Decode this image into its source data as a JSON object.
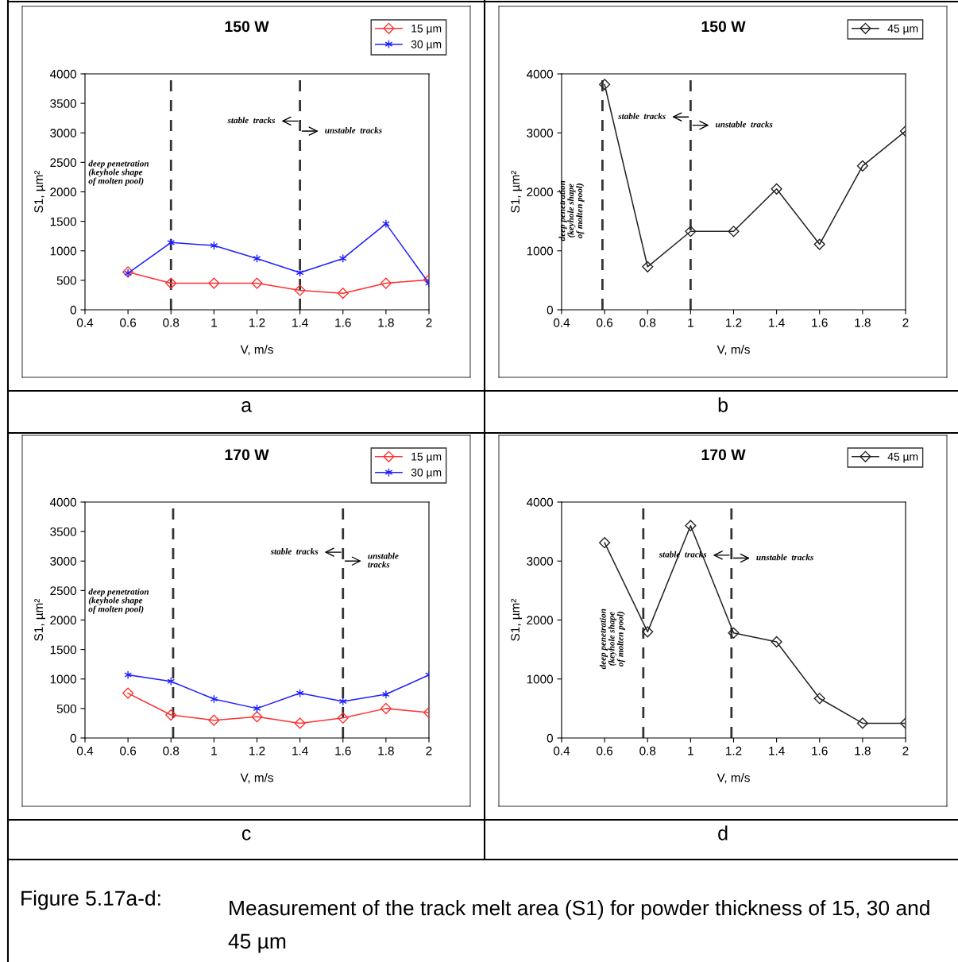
{
  "chart_data": [
    {
      "type": "line",
      "title": "150 W",
      "xlabel": "V, m/s",
      "ylabel": "S1, µm²",
      "xlim": [
        0.4,
        2
      ],
      "xticks": [
        0.4,
        0.6,
        0.8,
        1,
        1.2,
        1.4,
        1.6,
        1.8,
        2
      ],
      "ylim": [
        0,
        4000
      ],
      "yticks": [
        0,
        500,
        1000,
        1500,
        2000,
        2500,
        3000,
        3500,
        4000
      ],
      "grid": false,
      "legend": "top right",
      "x": [
        0.6,
        0.8,
        1,
        1.2,
        1.4,
        1.6,
        1.8,
        2
      ],
      "series": [
        {
          "name": "15 µm",
          "color": "#ff3030",
          "marker": "diamond",
          "values": [
            640,
            450,
            450,
            450,
            330,
            280,
            450,
            510
          ]
        },
        {
          "name": "30 µm",
          "color": "#2020ff",
          "marker": "cross",
          "values": [
            620,
            1140,
            1090,
            870,
            630,
            870,
            1460,
            450
          ]
        }
      ],
      "ref_lines": [
        {
          "axis": "x",
          "value": 0.8,
          "line_style": "dashed",
          "color": "#333333"
        },
        {
          "axis": "x",
          "value": 1.4,
          "line_style": "dashed",
          "color": "#333333"
        }
      ],
      "annotations": [
        "a",
        "deep penetration\n(keyhole shape\nof molten pool)",
        {
          "text": "stable  tracks",
          "x": 1.4,
          "y": 3200
        },
        {
          "text": "unstable  tracks",
          "x": 1.4,
          "y": 3030
        },
        "Figure 5.17a-d:",
        "Measurement of the track melt area (S1) for powder thickness of 15, 30 and 45 µm"
      ]
    },
    {
      "type": "line",
      "title": "150 W",
      "xlabel": "V, m/s",
      "ylabel": "S1, µm²",
      "xlim": [
        0.4,
        2
      ],
      "xticks": [
        0.4,
        0.6,
        0.8,
        1,
        1.2,
        1.4,
        1.6,
        1.8,
        2
      ],
      "ylim": [
        0,
        4000
      ],
      "yticks": [
        0,
        1000,
        2000,
        3000,
        4000
      ],
      "grid": false,
      "legend": "top right",
      "x": [
        0.6,
        0.8,
        1,
        1.2,
        1.4,
        1.6,
        1.8,
        2
      ],
      "series": [
        {
          "name": "45 µm",
          "color": "#222222",
          "marker": "diamond",
          "values": [
            3820,
            730,
            1330,
            1330,
            2050,
            1110,
            2440,
            3030
          ]
        }
      ],
      "ref_lines": [
        {
          "axis": "x",
          "value": 0.59,
          "line_style": "dashed",
          "color": "#333333"
        },
        {
          "axis": "x",
          "value": 1.0,
          "line_style": "dashed",
          "color": "#333333"
        }
      ],
      "annotations": [
        "b",
        "deep penetration\n(keyhole shape\nof molten pool)",
        {
          "text": "stable  tracks",
          "x": 1.0,
          "y": 3270
        },
        {
          "text": "unstable  tracks",
          "x": 1.0,
          "y": 3130
        }
      ]
    },
    {
      "type": "line",
      "title": "170 W",
      "xlabel": "V, m/s",
      "ylabel": "S1, µm²",
      "xlim": [
        0.4,
        2
      ],
      "xticks": [
        0.4,
        0.6,
        0.8,
        1,
        1.2,
        1.4,
        1.6,
        1.8,
        2
      ],
      "ylim": [
        0,
        4000
      ],
      "yticks": [
        0,
        500,
        1000,
        1500,
        2000,
        2500,
        3000,
        3500,
        4000
      ],
      "grid": false,
      "legend": "top right",
      "x": [
        0.6,
        0.8,
        1,
        1.2,
        1.4,
        1.6,
        1.8,
        2
      ],
      "series": [
        {
          "name": "15 µm",
          "color": "#ff3030",
          "marker": "diamond",
          "values": [
            760,
            390,
            300,
            360,
            250,
            340,
            500,
            430
          ]
        },
        {
          "name": "30 µm",
          "color": "#2020ff",
          "marker": "cross",
          "values": [
            1070,
            960,
            660,
            500,
            760,
            620,
            740,
            1070
          ]
        }
      ],
      "ref_lines": [
        {
          "axis": "x",
          "value": 0.81,
          "line_style": "dashed",
          "color": "#333333"
        },
        {
          "axis": "x",
          "value": 1.6,
          "line_style": "dashed",
          "color": "#333333"
        }
      ],
      "annotations": [
        "c",
        "deep penetration\n(keyhole shape\nof molten pool)",
        {
          "text": "stable  tracks",
          "x": 1.6,
          "y": 3150
        },
        {
          "text": "unstable\ntracks",
          "x": 1.6,
          "y": 3000
        }
      ]
    },
    {
      "type": "line",
      "title": "170 W",
      "xlabel": "V, m/s",
      "ylabel": "S1, µm²",
      "xlim": [
        0.4,
        2
      ],
      "xticks": [
        0.4,
        0.6,
        0.8,
        1,
        1.2,
        1.4,
        1.6,
        1.8,
        2
      ],
      "ylim": [
        0,
        4000
      ],
      "yticks": [
        0,
        1000,
        2000,
        3000,
        4000
      ],
      "grid": false,
      "legend": "top right",
      "x": [
        0.6,
        0.8,
        1,
        1.2,
        1.4,
        1.6,
        1.8,
        2
      ],
      "series": [
        {
          "name": "45 µm",
          "color": "#222222",
          "marker": "diamond",
          "values": [
            3310,
            1800,
            3600,
            1780,
            1630,
            670,
            250,
            250
          ]
        }
      ],
      "ref_lines": [
        {
          "axis": "x",
          "value": 0.78,
          "line_style": "dashed",
          "color": "#333333"
        },
        {
          "axis": "x",
          "value": 1.19,
          "line_style": "dashed",
          "color": "#333333"
        }
      ],
      "annotations": [
        "d",
        "deep penetration\n(keyhole shape\nof molten pool)",
        {
          "text": "stable  tracks",
          "x": 1.19,
          "y": 3100
        },
        {
          "text": "unstable  tracks",
          "x": 1.19,
          "y": 3050
        }
      ]
    }
  ]
}
